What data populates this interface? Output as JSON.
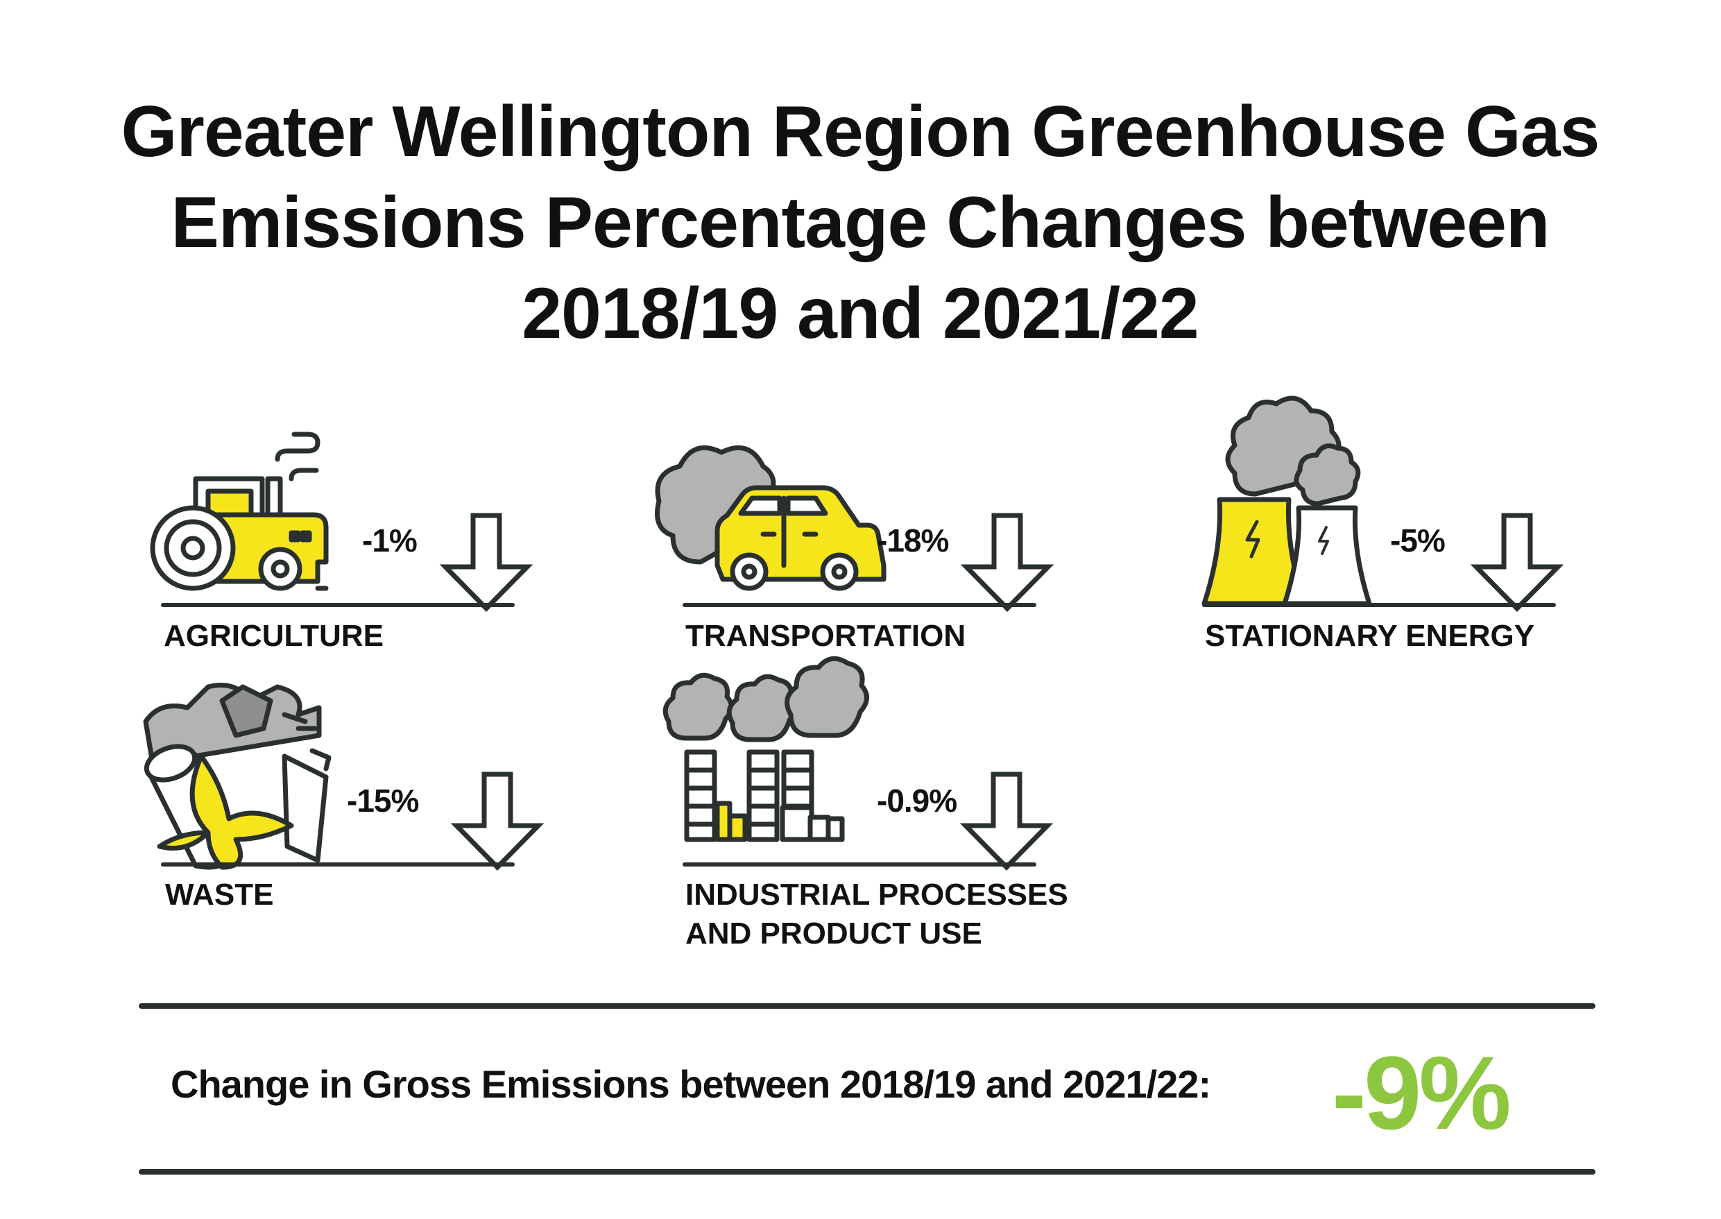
{
  "title_lines": [
    "Greater Wellington Region Greenhouse Gas",
    "Emissions Percentage Changes between",
    "2018/19 and 2021/22"
  ],
  "chart_data": {
    "type": "table",
    "title": "Greater Wellington Region Greenhouse Gas Emissions Percentage Changes between 2018/19 and 2021/22",
    "categories": [
      "AGRICULTURE",
      "TRANSPORTATION",
      "STATIONARY ENERGY",
      "WASTE",
      "INDUSTRIAL PROCESSES AND PRODUCT USE"
    ],
    "values": [
      -1,
      -18,
      -5,
      -15,
      -0.9
    ],
    "unit": "%",
    "rows": [
      {
        "sector": "AGRICULTURE",
        "change": -1,
        "display": "-1%",
        "direction": "down",
        "icon": "tractor-icon"
      },
      {
        "sector": "TRANSPORTATION",
        "change": -18,
        "display": "-18%",
        "direction": "down",
        "icon": "car-icon"
      },
      {
        "sector": "STATIONARY ENERGY",
        "change": -5,
        "display": "-5%",
        "direction": "down",
        "icon": "power-plant-icon"
      },
      {
        "sector": "WASTE",
        "change": -15,
        "display": "-15%",
        "direction": "down",
        "icon": "waste-icon"
      },
      {
        "sector": "INDUSTRIAL PROCESSES AND PRODUCT USE",
        "change": -0.9,
        "display": "-0.9%",
        "direction": "down",
        "icon": "factory-icon"
      }
    ],
    "total": {
      "label": "Change in Gross Emissions between 2018/19 and 2021/22:",
      "change": -9,
      "display": "-9%"
    }
  },
  "sectors": {
    "agriculture": {
      "value": "-1%",
      "label": "AGRICULTURE"
    },
    "transportation": {
      "value": "-18%",
      "label": "TRANSPORTATION"
    },
    "stationary_energy": {
      "value": "-5%",
      "label": "STATIONARY ENERGY"
    },
    "waste": {
      "value": "-15%",
      "label": "WASTE"
    },
    "industrial": {
      "value": "-0.9%",
      "label_line1": "INDUSTRIAL PROCESSES",
      "label_line2": "AND PRODUCT USE"
    }
  },
  "summary": {
    "label": "Change in Gross Emissions between 2018/19 and 2021/22:",
    "value": "-9%"
  },
  "colors": {
    "accent_yellow": "#f7e51c",
    "smoke_grey": "#b3b3b3",
    "outline": "#2a3030",
    "summary_green": "#8dc63f",
    "text": "#111111"
  }
}
